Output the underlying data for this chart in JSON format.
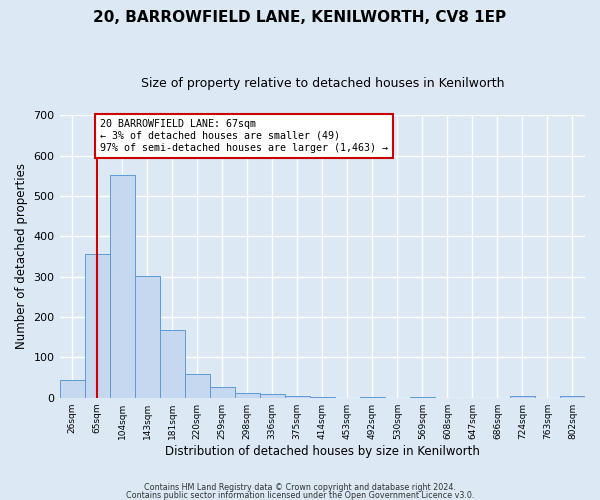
{
  "title": "20, BARROWFIELD LANE, KENILWORTH, CV8 1EP",
  "subtitle": "Size of property relative to detached houses in Kenilworth",
  "xlabel": "Distribution of detached houses by size in Kenilworth",
  "ylabel": "Number of detached properties",
  "bin_labels": [
    "26sqm",
    "65sqm",
    "104sqm",
    "143sqm",
    "181sqm",
    "220sqm",
    "259sqm",
    "298sqm",
    "336sqm",
    "375sqm",
    "414sqm",
    "453sqm",
    "492sqm",
    "530sqm",
    "569sqm",
    "608sqm",
    "647sqm",
    "686sqm",
    "724sqm",
    "763sqm",
    "802sqm"
  ],
  "bar_heights": [
    45,
    355,
    552,
    302,
    168,
    60,
    26,
    12,
    10,
    5,
    2,
    0,
    2,
    0,
    2,
    0,
    0,
    0,
    3,
    0,
    5
  ],
  "bar_color": "#c5d8f0",
  "bar_edge_color": "#5b9bd5",
  "ylim": [
    0,
    700
  ],
  "yticks": [
    0,
    100,
    200,
    300,
    400,
    500,
    600,
    700
  ],
  "property_line_x": 1.0,
  "vline_color": "#cc0000",
  "annotation_text": "20 BARROWFIELD LANE: 67sqm\n← 3% of detached houses are smaller (49)\n97% of semi-detached houses are larger (1,463) →",
  "annotation_box_color": "#ffffff",
  "annotation_box_edge_color": "#cc0000",
  "footer_line1": "Contains HM Land Registry data © Crown copyright and database right 2024.",
  "footer_line2": "Contains public sector information licensed under the Open Government Licence v3.0.",
  "bg_color": "#dce9f5",
  "plot_bg_color": "#dce9f5",
  "grid_color": "#ffffff",
  "title_fontsize": 11,
  "subtitle_fontsize": 9,
  "xlabel_fontsize": 8.5,
  "ylabel_fontsize": 8.5
}
